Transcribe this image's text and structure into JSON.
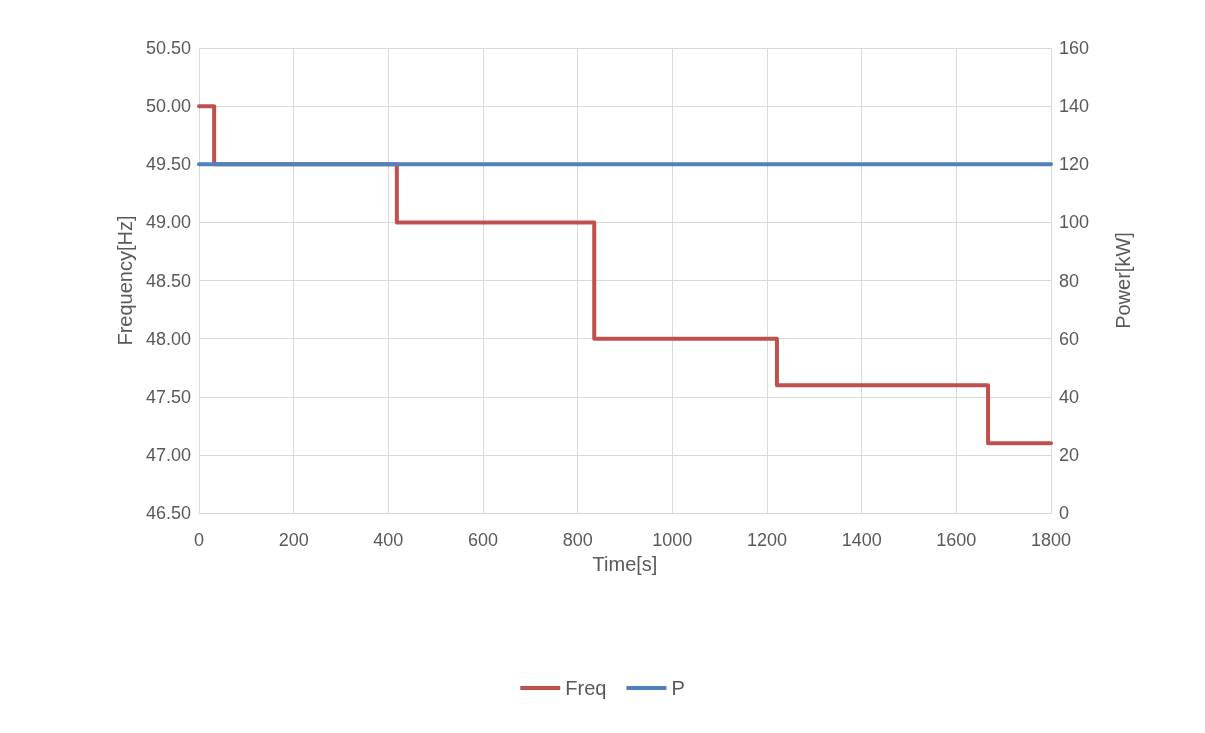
{
  "chart_data": {
    "type": "line",
    "xlabel": "Time[s]",
    "ylabel": "Frequency[Hz]",
    "y2label": "Power[kW]",
    "xlim": [
      0,
      1800
    ],
    "xticks": [
      0,
      200,
      400,
      600,
      800,
      1000,
      1200,
      1400,
      1600,
      1800
    ],
    "ylim": [
      46.5,
      50.5
    ],
    "yticks": [
      {
        "value": 46.5,
        "label": "46.50"
      },
      {
        "value": 47,
        "label": "47.00"
      },
      {
        "value": 47.5,
        "label": "47.50"
      },
      {
        "value": 48,
        "label": "48.00"
      },
      {
        "value": 48.5,
        "label": "48.50"
      },
      {
        "value": 49,
        "label": "49.00"
      },
      {
        "value": 49.5,
        "label": "49.50"
      },
      {
        "value": 50,
        "label": "50.00"
      },
      {
        "value": 50.5,
        "label": "50.50"
      }
    ],
    "y2lim": [
      0,
      160
    ],
    "y2ticks": [
      0,
      20,
      40,
      60,
      80,
      100,
      120,
      140,
      160
    ],
    "grid": true,
    "legend": "bottom",
    "marker": "none",
    "line_style": "solid",
    "series": [
      {
        "name": "Freq",
        "color": "#c0504d",
        "x": [
          0,
          32,
          32,
          418,
          418,
          835,
          835,
          1221,
          1221,
          1667,
          1667,
          1800
        ],
        "values": [
          50,
          50,
          49.5,
          49.5,
          49,
          49,
          48,
          48,
          47.6,
          47.6,
          47.1,
          47.1
        ]
      },
      {
        "name": "P",
        "color": "#4f81bd",
        "axis": "y2",
        "x": [
          0,
          1800
        ],
        "values": [
          120,
          120
        ]
      }
    ]
  }
}
